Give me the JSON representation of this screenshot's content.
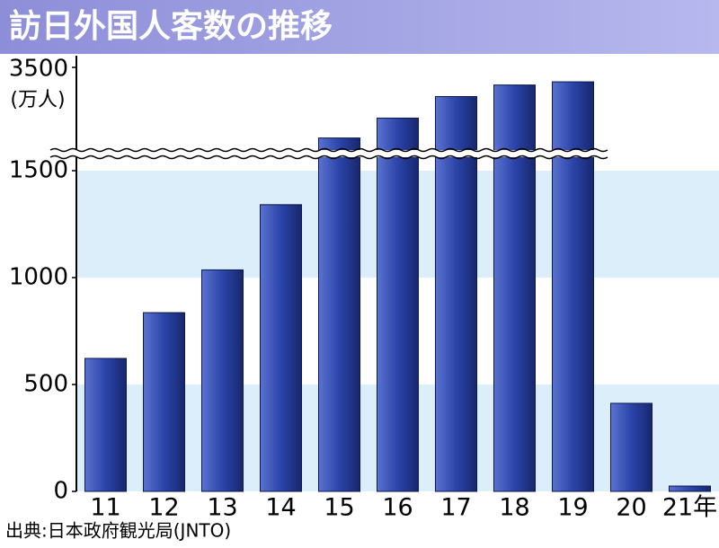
{
  "chart_data": {
    "type": "bar",
    "title": "訪日外国人客数の推移",
    "y_label": "(万人)",
    "source": "出典:日本政府観光局(JNTO)",
    "categories": [
      "11",
      "12",
      "13",
      "14",
      "15",
      "16",
      "17",
      "18",
      "19",
      "20",
      "21年"
    ],
    "values": [
      622,
      836,
      1036,
      1341,
      1974,
      2404,
      2869,
      3119,
      3188,
      412,
      25
    ],
    "color": "#2b44a8",
    "ylim": [
      0,
      3500
    ],
    "yticks": [
      0,
      500,
      1000,
      1500,
      3500
    ],
    "axis_break": true
  }
}
